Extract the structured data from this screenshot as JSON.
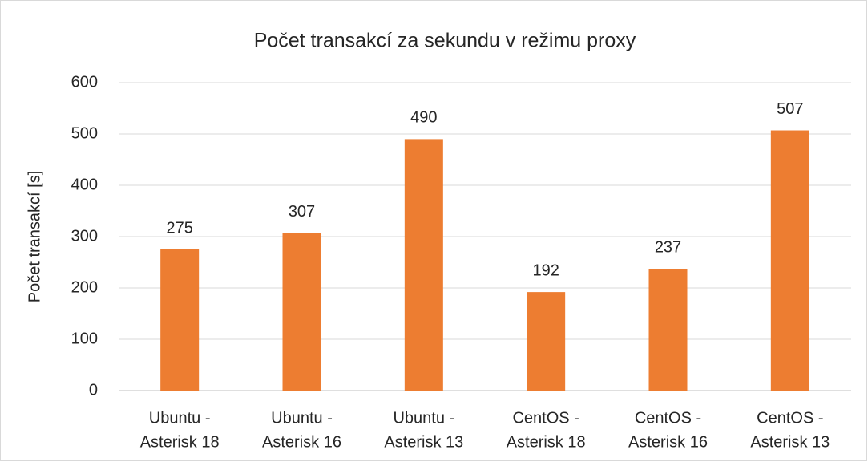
{
  "chart_data": {
    "type": "bar",
    "title": "Počet transakcí za sekundu v režimu proxy",
    "y_label": "Počet transakcí [s]",
    "categories": [
      [
        "Ubuntu -",
        "Asterisk 18"
      ],
      [
        "Ubuntu -",
        "Asterisk 16"
      ],
      [
        "Ubuntu -",
        "Asterisk 13"
      ],
      [
        "CentOS -",
        "Asterisk 18"
      ],
      [
        "CentOS -",
        "Asterisk 16"
      ],
      [
        "CentOS -",
        "Asterisk 13"
      ]
    ],
    "values": [
      275,
      307,
      490,
      192,
      237,
      507
    ],
    "color": "#ed7d31",
    "ylim": [
      0,
      600
    ],
    "yticks": [
      0,
      100,
      200,
      300,
      400,
      500,
      600
    ],
    "grid": true
  }
}
